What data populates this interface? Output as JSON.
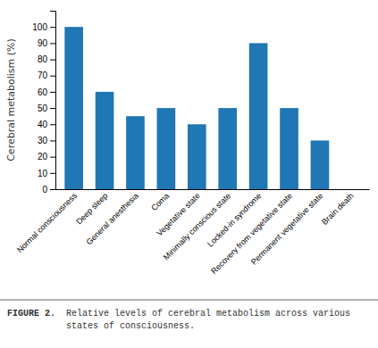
{
  "chart_data": {
    "type": "bar",
    "title": "FIGURE 2.",
    "subtitle": "Relative levels of cerebral metabolism across various\nstates of consciousness.",
    "categories": [
      "Normal consciousness",
      "Deep sleep",
      "General anesthesia",
      "Coma",
      "Vegetative state",
      "Minimally conscious state",
      "Locked-in syndrome",
      "Recovery from vegetative state",
      "Permanent vegetative state",
      "Brain death"
    ],
    "values": [
      100,
      60,
      45,
      50,
      40,
      50,
      90,
      50,
      30,
      0
    ],
    "ylabel": "Cerebral metabolism (%)",
    "ylim": [
      0,
      110
    ],
    "yticks": [
      0,
      10,
      20,
      30,
      40,
      50,
      60,
      70,
      80,
      90,
      100
    ]
  }
}
